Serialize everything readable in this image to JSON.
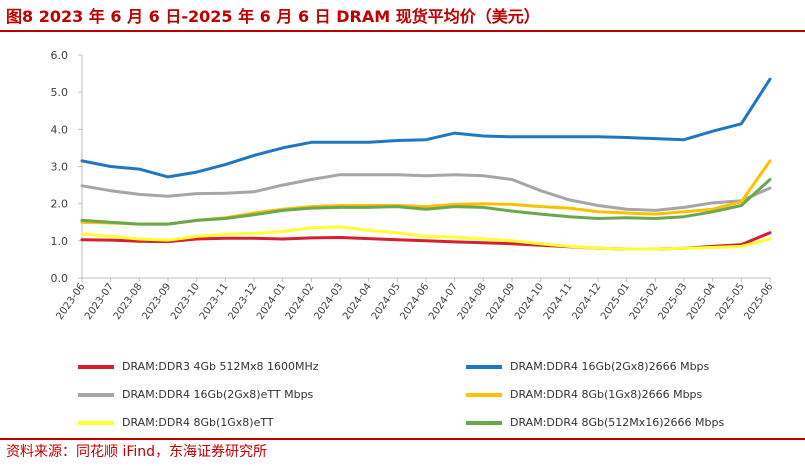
{
  "header": {
    "title": "图8  2023 年 6 月 6 日-2025 年 6 月 6 日 DRAM 现货平均价（美元）"
  },
  "footer": {
    "source": "资料来源：同花顺 iFind，东海证券研究所"
  },
  "chart_data": {
    "type": "line",
    "title": "",
    "xlabel": "",
    "ylabel": "",
    "ylim": [
      0,
      6
    ],
    "yticks": [
      "0.0",
      "1.0",
      "2.0",
      "3.0",
      "4.0",
      "5.0",
      "6.0"
    ],
    "x": [
      "2023-06",
      "2023-07",
      "2023-08",
      "2023-09",
      "2023-10",
      "2023-11",
      "2023-12",
      "2024-01",
      "2024-02",
      "2024-03",
      "2024-04",
      "2024-05",
      "2024-06",
      "2024-07",
      "2024-08",
      "2024-09",
      "2024-10",
      "2024-11",
      "2024-12",
      "2025-01",
      "2025-02",
      "2025-03",
      "2025-04",
      "2025-05",
      "2025-06"
    ],
    "grid": false,
    "legend": "bottom",
    "series": [
      {
        "name": "DRAM:DDR3 4Gb 512Mx8 1600MHz",
        "color": "#d7202f",
        "values": [
          1.03,
          1.02,
          0.99,
          0.98,
          1.05,
          1.07,
          1.07,
          1.05,
          1.08,
          1.09,
          1.06,
          1.03,
          1.0,
          0.97,
          0.95,
          0.92,
          0.88,
          0.84,
          0.8,
          0.78,
          0.78,
          0.8,
          0.85,
          0.9,
          1.22
        ]
      },
      {
        "name": "DRAM:DDR4 16Gb(2Gx8)2666 Mbps",
        "color": "#1f77c4",
        "values": [
          3.15,
          3.0,
          2.93,
          2.72,
          2.85,
          3.05,
          3.3,
          3.5,
          3.65,
          3.65,
          3.65,
          3.7,
          3.72,
          3.9,
          3.82,
          3.8,
          3.8,
          3.8,
          3.8,
          3.78,
          3.75,
          3.72,
          3.95,
          4.15,
          5.35
        ]
      },
      {
        "name": "DRAM:DDR4 16Gb(2Gx8)eTT Mbps",
        "color": "#a6a6a6",
        "values": [
          2.48,
          2.35,
          2.25,
          2.2,
          2.27,
          2.28,
          2.32,
          2.5,
          2.65,
          2.78,
          2.78,
          2.78,
          2.75,
          2.78,
          2.75,
          2.65,
          2.35,
          2.1,
          1.95,
          1.85,
          1.82,
          1.9,
          2.02,
          2.08,
          2.42
        ]
      },
      {
        "name": "DRAM:DDR4 8Gb(1Gx8)2666 Mbps",
        "color": "#ffc000",
        "values": [
          1.5,
          1.48,
          1.45,
          1.45,
          1.55,
          1.62,
          1.75,
          1.85,
          1.92,
          1.95,
          1.95,
          1.95,
          1.92,
          1.98,
          2.0,
          1.98,
          1.92,
          1.88,
          1.78,
          1.75,
          1.72,
          1.78,
          1.85,
          2.05,
          3.15
        ]
      },
      {
        "name": "DRAM:DDR4 8Gb(1Gx8)eTT",
        "color": "#ffff33",
        "values": [
          1.18,
          1.12,
          1.05,
          1.02,
          1.12,
          1.18,
          1.2,
          1.25,
          1.35,
          1.38,
          1.28,
          1.22,
          1.12,
          1.1,
          1.05,
          1.0,
          0.92,
          0.85,
          0.8,
          0.78,
          0.78,
          0.8,
          0.82,
          0.85,
          1.05
        ]
      },
      {
        "name": "DRAM:DDR4 8Gb(512Mx16)2666 Mbps",
        "color": "#6aa84f",
        "values": [
          1.55,
          1.5,
          1.45,
          1.45,
          1.55,
          1.6,
          1.7,
          1.82,
          1.88,
          1.9,
          1.9,
          1.92,
          1.85,
          1.92,
          1.9,
          1.8,
          1.72,
          1.65,
          1.6,
          1.62,
          1.6,
          1.65,
          1.78,
          1.95,
          2.65
        ]
      }
    ]
  }
}
